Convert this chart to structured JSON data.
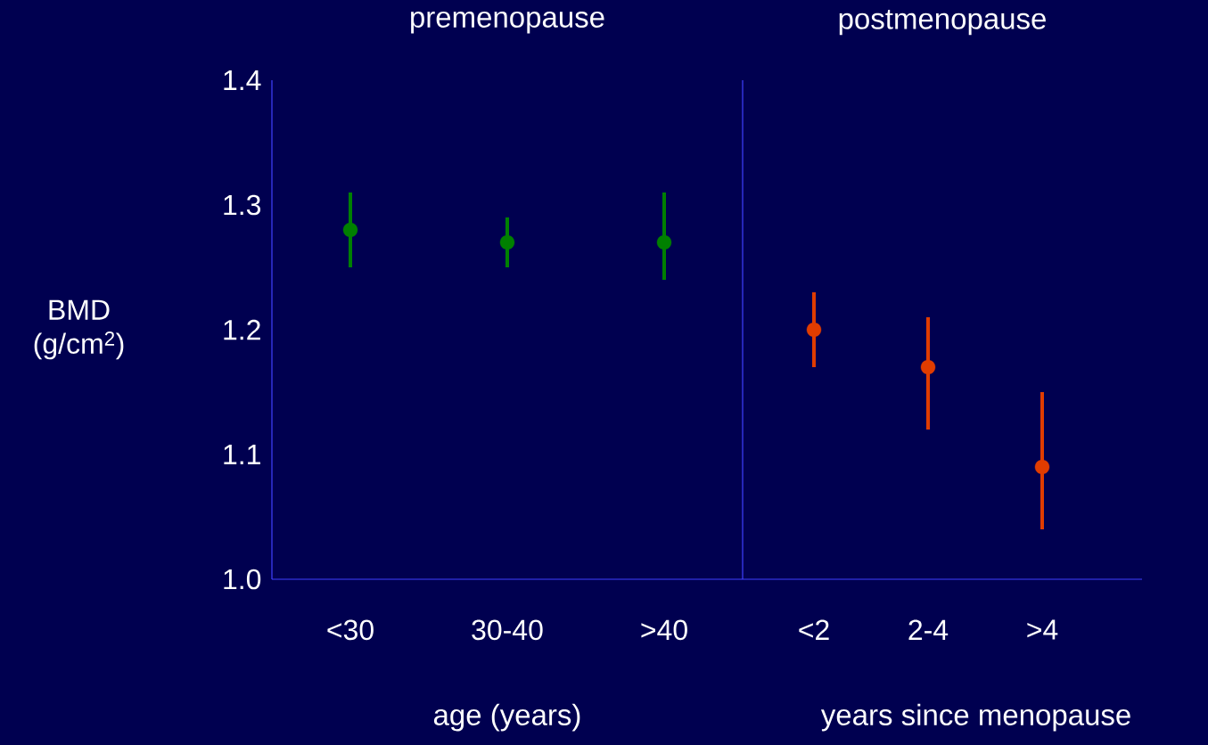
{
  "chart_data": [
    {
      "type": "scatter",
      "title": "premenopause",
      "xlabel": "age (years)",
      "ylabel": "BMD (g/cm$^{2}$)",
      "categories": [
        "<30",
        "30-40",
        ">40"
      ],
      "values": [
        1.28,
        1.27,
        1.27
      ],
      "errors": [
        [
          1.25,
          1.31
        ],
        [
          1.25,
          1.29
        ],
        [
          1.24,
          1.31
        ]
      ],
      "color": "#008000",
      "marker": "circle",
      "ylim": [
        1.0,
        1.4
      ],
      "yticks": [
        {
          "value": 1,
          "label": "1.0"
        },
        1.1,
        1.2,
        1.3,
        1.4
      ]
    },
    {
      "type": "scatter",
      "title": "postmenopause",
      "xlabel": "years since menopause",
      "categories": [
        "<2",
        "2-4",
        ">4"
      ],
      "values": [
        1.2,
        1.17,
        1.09
      ],
      "errors": [
        [
          1.17,
          1.23
        ],
        [
          1.12,
          1.21
        ],
        [
          1.04,
          1.15
        ]
      ],
      "color": "#e03c00",
      "marker": "circle",
      "ylim": [
        1.0,
        1.4
      ],
      "tick_labels": "x"
    }
  ]
}
